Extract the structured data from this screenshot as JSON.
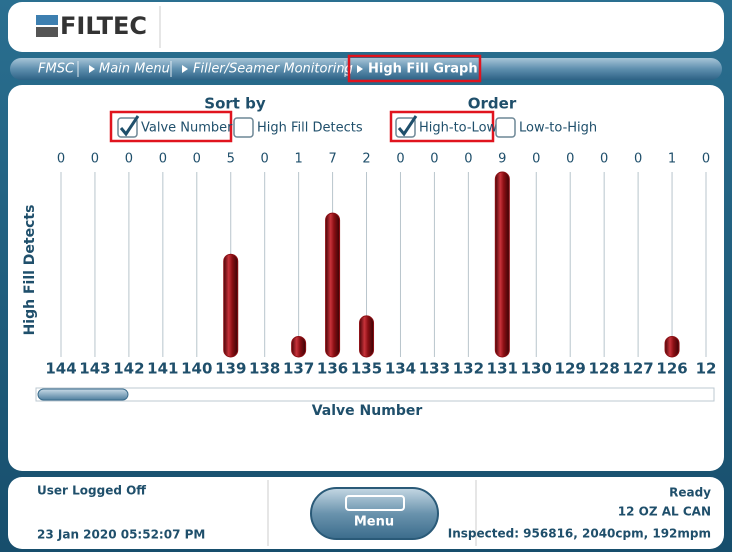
{
  "header": {
    "logo": "FILTEC"
  },
  "breadcrumb": [
    "FMSC",
    "Main Menu",
    "Filler/Seamer Monitoring",
    "High Fill Graph"
  ],
  "sort_by": {
    "title": "Sort by",
    "options": [
      {
        "label": "Valve Number",
        "checked": true
      },
      {
        "label": "High Fill Detects",
        "checked": false
      }
    ]
  },
  "order": {
    "title": "Order",
    "options": [
      {
        "label": "High-to-Low",
        "checked": true
      },
      {
        "label": "Low-to-High",
        "checked": false
      }
    ]
  },
  "chart_data": {
    "type": "bar",
    "y_label": "High Fill Detects",
    "x_label": "Valve Number",
    "categories": [
      "144",
      "143",
      "142",
      "141",
      "140",
      "139",
      "138",
      "137",
      "136",
      "135",
      "134",
      "133",
      "132",
      "131",
      "130",
      "129",
      "128",
      "127",
      "126",
      "12"
    ],
    "values": [
      0,
      0,
      0,
      0,
      0,
      5,
      0,
      1,
      7,
      2,
      0,
      0,
      0,
      9,
      0,
      0,
      0,
      0,
      1,
      0
    ],
    "color": "#8b0f14",
    "ylim": [
      0,
      9
    ]
  },
  "footer": {
    "status": "User Logged Off",
    "datetime": "23 Jan 2020 05:52:07 PM",
    "menu": "Menu",
    "state": "Ready",
    "product": "12 OZ AL CAN",
    "inspected": "Inspected: 956816, 2040cpm, 192mpm"
  }
}
